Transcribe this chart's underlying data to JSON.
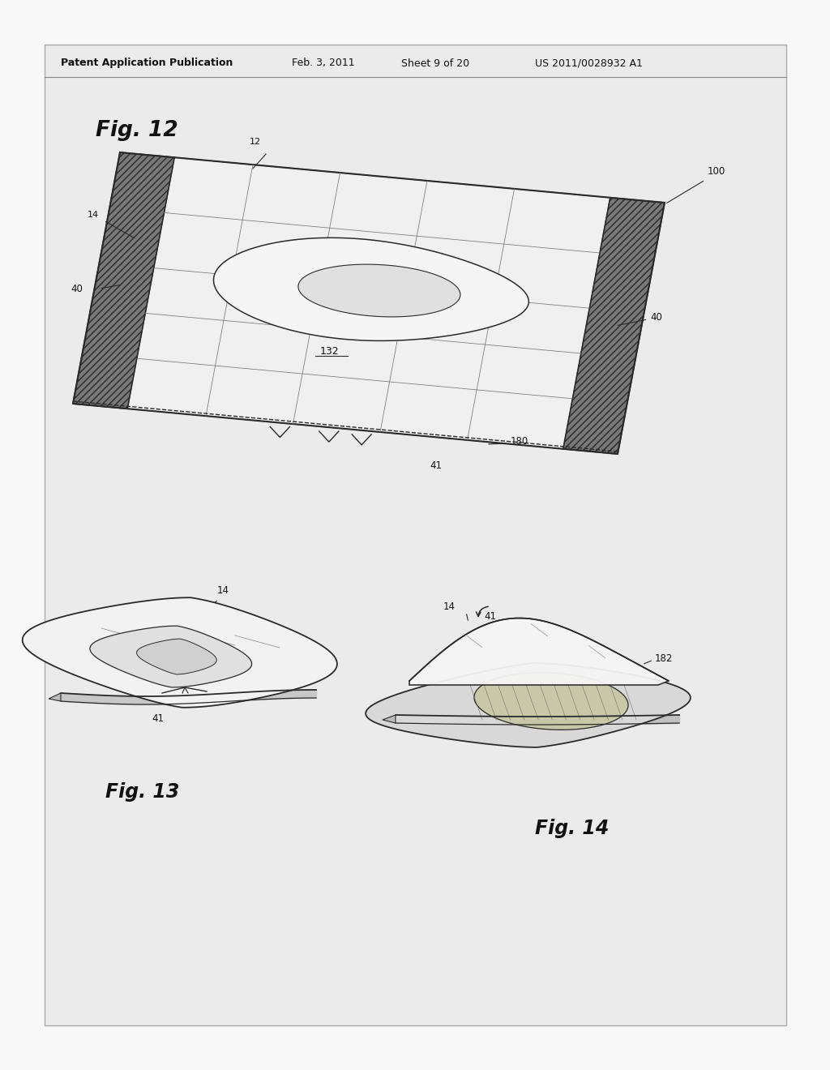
{
  "background_color": "#f0f0f0",
  "page_color": "#e8e8e8",
  "inner_color": "#e4e4e4",
  "line_color": "#2a2a2a",
  "dark_gray": "#555555",
  "medium_gray": "#888888",
  "light_line": "#999999",
  "header_text": "Patent Application Publication",
  "header_date": "Feb. 3, 2011",
  "header_sheet": "Sheet 9 of 20",
  "header_patent": "US 2011/0028932 A1",
  "fig12_label": "Fig. 12",
  "fig13_label": "Fig. 13",
  "fig14_label": "Fig. 14"
}
